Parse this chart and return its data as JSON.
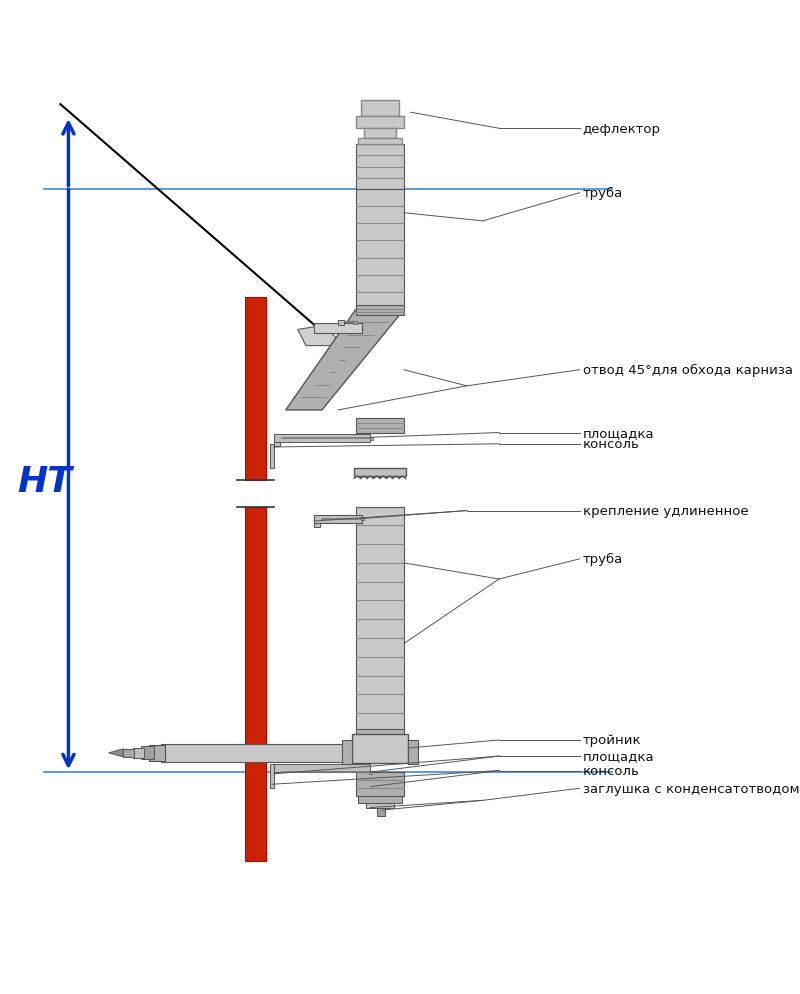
{
  "bg_color": "#ffffff",
  "chimney_color": "#c8c8c8",
  "chimney_dark": "#888888",
  "chimney_stripe": "#aaaaaa",
  "red_wall_color": "#cc2200",
  "blue_arrow_color": "#0033cc",
  "line_color": "#333333",
  "label_color": "#000000",
  "horizontal_line_color": "#4488cc",
  "labels": {
    "deflector": "дефлектор",
    "truba1": "труба",
    "bend45": "отвод 45°для обхода карниза",
    "ploschadka1": "площадка",
    "konsol1": "консоль",
    "kreplen": "крепление удлиненное",
    "truba2": "труба",
    "troynik": "тройник",
    "ploschadka2": "площадка",
    "konsol2": "консоль",
    "zaglu": "заглушка с конденсатотводом",
    "ht": "НТ"
  },
  "fig_width": 8.0,
  "fig_height": 9.95
}
